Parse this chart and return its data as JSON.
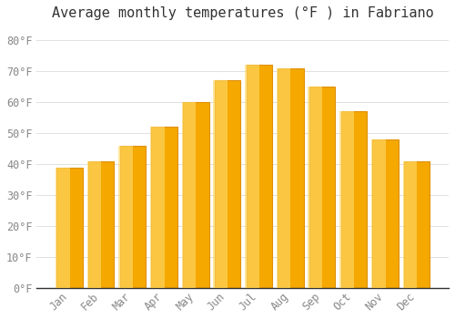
{
  "title": "Average monthly temperatures (°F ) in Fabriano",
  "months": [
    "Jan",
    "Feb",
    "Mar",
    "Apr",
    "May",
    "Jun",
    "Jul",
    "Aug",
    "Sep",
    "Oct",
    "Nov",
    "Dec"
  ],
  "values": [
    39,
    41,
    46,
    52,
    60,
    67,
    72,
    71,
    65,
    57,
    48,
    41
  ],
  "bar_color_bottom": "#F5A800",
  "bar_color_top": "#FFD966",
  "bar_color_edge": "#E09000",
  "background_color": "#FFFFFF",
  "grid_color": "#E0E0E0",
  "ylim": [
    0,
    85
  ],
  "yticks": [
    0,
    10,
    20,
    30,
    40,
    50,
    60,
    70,
    80
  ],
  "bar_width": 0.82,
  "title_fontsize": 11,
  "tick_fontsize": 8.5,
  "font_family": "monospace",
  "tick_color": "#888888",
  "spine_color": "#333333"
}
